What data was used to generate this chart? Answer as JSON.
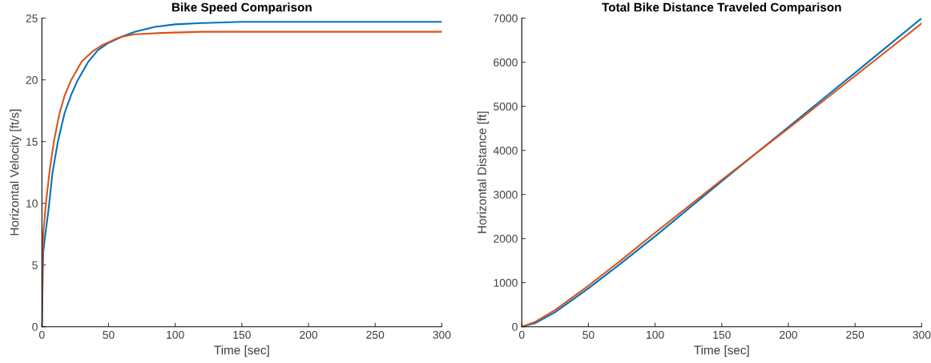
{
  "chart_data": [
    {
      "type": "line",
      "title": "Bike Speed Comparison",
      "xlabel": "Time [sec]",
      "ylabel": "Horizontal Velocity [ft/s]",
      "xlim": [
        0,
        300
      ],
      "ylim": [
        0,
        25
      ],
      "xticks": [
        0,
        50,
        100,
        150,
        200,
        250,
        300
      ],
      "yticks": [
        0,
        5,
        10,
        15,
        20,
        25
      ],
      "grid": false,
      "series": [
        {
          "color": "#0072bd",
          "x": [
            0,
            1,
            2,
            5,
            8,
            12,
            17,
            22,
            27,
            35,
            42,
            50,
            60,
            70,
            85,
            100,
            120,
            150,
            200,
            250,
            300
          ],
          "values": [
            0,
            6,
            7,
            9.5,
            12.5,
            15,
            17.3,
            18.8,
            20,
            21.5,
            22.4,
            23,
            23.5,
            23.9,
            24.3,
            24.5,
            24.6,
            24.7,
            24.7,
            24.7,
            24.7
          ]
        },
        {
          "color": "#d95319",
          "x": [
            0,
            0.5,
            1,
            3,
            6,
            9,
            13,
            17,
            22,
            30,
            38,
            45,
            55,
            60,
            70,
            90,
            120,
            150,
            200,
            250,
            300
          ],
          "values": [
            0,
            6,
            7.5,
            10,
            12.8,
            15,
            17.2,
            18.7,
            20,
            21.5,
            22.3,
            22.8,
            23.3,
            23.5,
            23.7,
            23.8,
            23.9,
            23.9,
            23.9,
            23.9,
            23.9
          ]
        }
      ]
    },
    {
      "type": "line",
      "title": "Total Bike Distance Traveled Comparison",
      "xlabel": "Time [sec]",
      "ylabel": "Horizontal Distance [ft]",
      "xlim": [
        0,
        300
      ],
      "ylim": [
        0,
        7000
      ],
      "xticks": [
        0,
        50,
        100,
        150,
        200,
        250,
        300
      ],
      "yticks": [
        0,
        1000,
        2000,
        3000,
        4000,
        5000,
        6000,
        7000
      ],
      "grid": false,
      "series": [
        {
          "color": "#0072bd",
          "x": [
            0,
            10,
            25,
            50,
            75,
            100,
            150,
            200,
            250,
            300
          ],
          "values": [
            0,
            80,
            330,
            870,
            1450,
            2050,
            3300,
            4530,
            5760,
            7000
          ]
        },
        {
          "color": "#d95319",
          "x": [
            0,
            10,
            25,
            50,
            75,
            100,
            150,
            200,
            250,
            300
          ],
          "values": [
            0,
            110,
            380,
            930,
            1520,
            2130,
            3330,
            4500,
            5690,
            6880
          ]
        }
      ]
    }
  ]
}
